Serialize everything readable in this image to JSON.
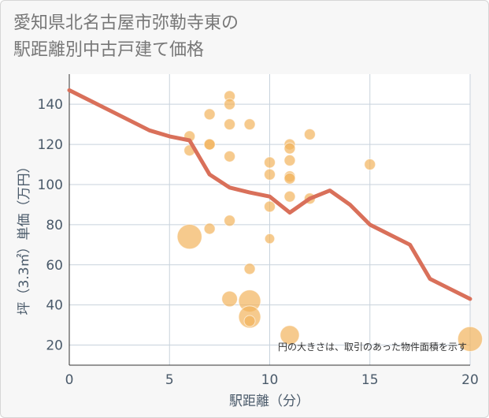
{
  "page": {
    "title": "愛知県北名古屋市弥勒寺東の\n駅距離別中古戸建て価格"
  },
  "chart_data": {
    "type": "scatter",
    "xlabel": "駅距離（分）",
    "ylabel": "坪（3.3㎡）単価（万円）",
    "xlim": [
      0,
      20
    ],
    "ylim": [
      10,
      155
    ],
    "x_ticks": [
      0,
      5,
      10,
      15,
      20
    ],
    "y_ticks": [
      20,
      40,
      60,
      80,
      100,
      120,
      140
    ],
    "grid": true,
    "annotation": "円の大きさは、取引のあった物件面積を示す",
    "colors": {
      "points": "#f2b35c",
      "line": "#d9705a",
      "grid": "#c8d2dc",
      "plot_bg": "#ffffff"
    },
    "points": [
      {
        "x": 6,
        "y": 124,
        "size": 1
      },
      {
        "x": 6,
        "y": 117,
        "size": 1
      },
      {
        "x": 6,
        "y": 74,
        "size": 5
      },
      {
        "x": 7,
        "y": 135,
        "size": 1
      },
      {
        "x": 7,
        "y": 120,
        "size": 1
      },
      {
        "x": 7,
        "y": 120,
        "size": 1
      },
      {
        "x": 7,
        "y": 78,
        "size": 1
      },
      {
        "x": 8,
        "y": 144,
        "size": 1
      },
      {
        "x": 8,
        "y": 140,
        "size": 1
      },
      {
        "x": 8,
        "y": 130,
        "size": 1
      },
      {
        "x": 8,
        "y": 114,
        "size": 1
      },
      {
        "x": 8,
        "y": 82,
        "size": 1
      },
      {
        "x": 8,
        "y": 43,
        "size": 2
      },
      {
        "x": 9,
        "y": 130,
        "size": 1
      },
      {
        "x": 9,
        "y": 58,
        "size": 1
      },
      {
        "x": 9,
        "y": 42,
        "size": 4
      },
      {
        "x": 9,
        "y": 34,
        "size": 4
      },
      {
        "x": 9,
        "y": 32,
        "size": 1
      },
      {
        "x": 10,
        "y": 111,
        "size": 1
      },
      {
        "x": 10,
        "y": 105,
        "size": 1
      },
      {
        "x": 10,
        "y": 89,
        "size": 1
      },
      {
        "x": 10,
        "y": 73,
        "size": 0.8
      },
      {
        "x": 11,
        "y": 120,
        "size": 1
      },
      {
        "x": 11,
        "y": 118,
        "size": 1
      },
      {
        "x": 11,
        "y": 112,
        "size": 1
      },
      {
        "x": 11,
        "y": 104,
        "size": 1
      },
      {
        "x": 11,
        "y": 103,
        "size": 1
      },
      {
        "x": 11,
        "y": 94,
        "size": 1
      },
      {
        "x": 11,
        "y": 25,
        "size": 3
      },
      {
        "x": 12,
        "y": 125,
        "size": 1
      },
      {
        "x": 12,
        "y": 93,
        "size": 1
      },
      {
        "x": 15,
        "y": 110,
        "size": 1
      },
      {
        "x": 20,
        "y": 23,
        "size": 5
      }
    ],
    "trend_line": {
      "x": [
        0,
        2,
        4,
        5,
        6,
        7,
        8,
        9,
        10,
        11,
        12,
        13,
        14,
        15,
        16,
        17,
        18,
        19,
        20
      ],
      "y": [
        147,
        137,
        127,
        124,
        122,
        105,
        98.5,
        96,
        94,
        86,
        93,
        97,
        90,
        80,
        75,
        70,
        53,
        48,
        43
      ]
    }
  }
}
